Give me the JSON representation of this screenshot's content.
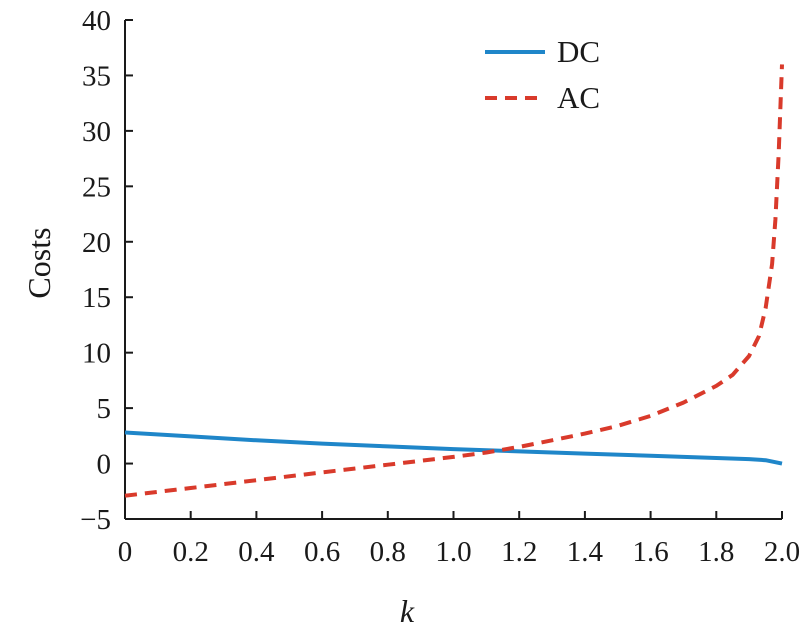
{
  "chart_data": {
    "type": "line",
    "xlabel": "k",
    "ylabel": "Costs",
    "xlim": [
      0,
      2.0
    ],
    "ylim": [
      -5,
      40
    ],
    "x_ticks": [
      "0",
      "0.2",
      "0.4",
      "0.6",
      "0.8",
      "1.0",
      "1.2",
      "1.4",
      "1.6",
      "1.8",
      "2.0"
    ],
    "y_ticks": [
      "−5",
      "0",
      "5",
      "10",
      "15",
      "20",
      "25",
      "30",
      "35",
      "40"
    ],
    "grid": false,
    "legend_position": "top-right",
    "series": [
      {
        "name": "DC",
        "color": "#1f86c9",
        "style": "solid",
        "x": [
          0,
          0.2,
          0.4,
          0.6,
          0.8,
          1.0,
          1.2,
          1.4,
          1.6,
          1.8,
          1.9,
          1.95,
          2.0
        ],
        "y": [
          2.8,
          2.45,
          2.1,
          1.8,
          1.55,
          1.3,
          1.1,
          0.9,
          0.7,
          0.5,
          0.4,
          0.3,
          0.0
        ]
      },
      {
        "name": "AC",
        "color": "#d93a2b",
        "style": "dashed",
        "x": [
          0,
          0.2,
          0.4,
          0.6,
          0.8,
          1.0,
          1.1,
          1.2,
          1.3,
          1.4,
          1.5,
          1.6,
          1.7,
          1.8,
          1.85,
          1.9,
          1.93,
          1.95,
          1.97,
          1.98,
          1.99,
          2.0
        ],
        "y": [
          -2.9,
          -2.2,
          -1.5,
          -0.8,
          -0.1,
          0.6,
          1.0,
          1.5,
          2.1,
          2.7,
          3.4,
          4.3,
          5.5,
          7.0,
          8.0,
          9.7,
          11.5,
          14.0,
          18.0,
          22.0,
          28.0,
          36.0
        ]
      }
    ]
  }
}
